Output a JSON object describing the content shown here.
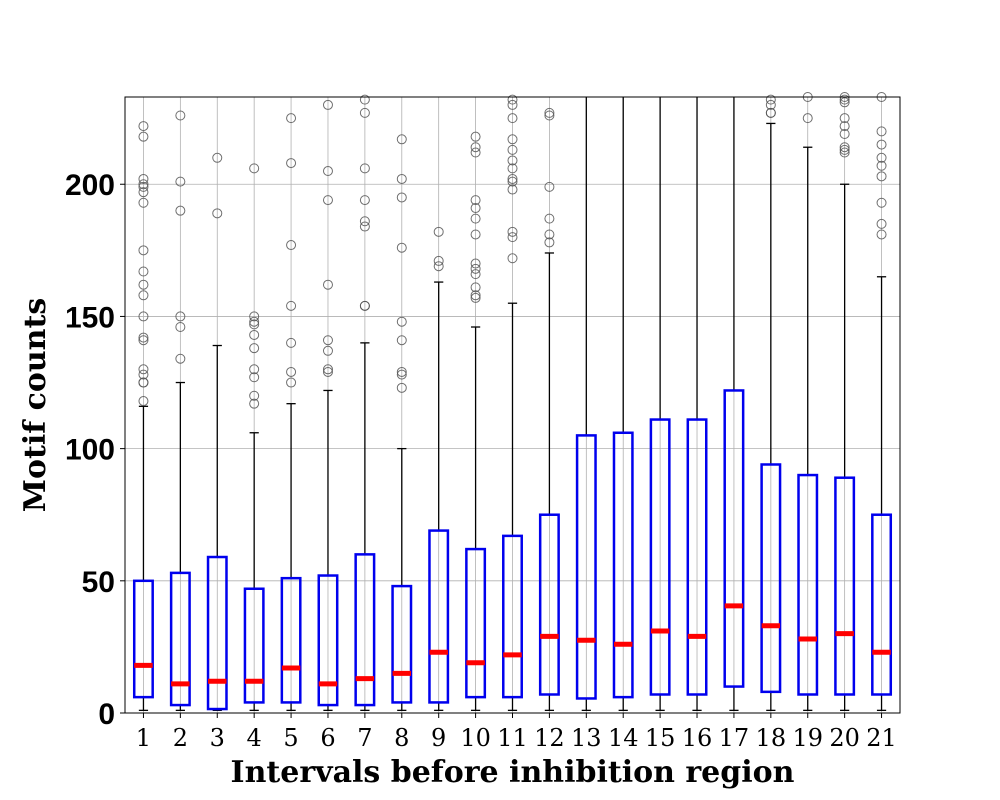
{
  "chart_data": {
    "type": "box",
    "xlabel": "Intervals before inhibition region",
    "ylabel": "Motif counts",
    "ylim": [
      0,
      233
    ],
    "yticks": [
      0,
      50,
      100,
      150,
      200
    ],
    "grid": true,
    "colors": {
      "box": "#0000ee",
      "median": "#ff0000",
      "whisker": "#000000",
      "outlier": "#555555",
      "grid": "#b0b0b0"
    },
    "boxes": [
      {
        "label": "1",
        "whislo": 1,
        "q1": 6,
        "med": 18,
        "q3": 50,
        "whishi": 116,
        "fliers": [
          118,
          125,
          125,
          128,
          130,
          141,
          142,
          150,
          158,
          162,
          167,
          175,
          193,
          197,
          199,
          200,
          202,
          218,
          222
        ]
      },
      {
        "label": "2",
        "whislo": 1,
        "q1": 3,
        "med": 11,
        "q3": 53,
        "whishi": 125,
        "fliers": [
          134,
          146,
          150,
          190,
          201,
          226
        ]
      },
      {
        "label": "3",
        "whislo": 1,
        "q1": 1.5,
        "med": 12,
        "q3": 59,
        "whishi": 139,
        "fliers": [
          189,
          210
        ]
      },
      {
        "label": "4",
        "whislo": 1,
        "q1": 4,
        "med": 12,
        "q3": 47,
        "whishi": 106,
        "fliers": [
          117,
          120,
          127,
          130,
          138,
          143,
          147,
          148,
          150,
          206
        ]
      },
      {
        "label": "5",
        "whislo": 1,
        "q1": 4,
        "med": 17,
        "q3": 51,
        "whishi": 117,
        "fliers": [
          125,
          129,
          140,
          154,
          177,
          208,
          225
        ]
      },
      {
        "label": "6",
        "whislo": 1,
        "q1": 3,
        "med": 11,
        "q3": 52,
        "whishi": 122,
        "fliers": [
          129,
          130,
          137,
          141,
          162,
          194,
          205,
          230
        ]
      },
      {
        "label": "7",
        "whislo": 1,
        "q1": 3,
        "med": 13,
        "q3": 60,
        "whishi": 140,
        "fliers": [
          154,
          154,
          184,
          186,
          194,
          206,
          227,
          232
        ]
      },
      {
        "label": "8",
        "whislo": 1,
        "q1": 4,
        "med": 15,
        "q3": 48,
        "whishi": 100,
        "fliers": [
          123,
          128,
          129,
          141,
          148,
          176,
          195,
          202,
          217
        ]
      },
      {
        "label": "9",
        "whislo": 1,
        "q1": 4,
        "med": 23,
        "q3": 69,
        "whishi": 163,
        "fliers": [
          169,
          171,
          182
        ]
      },
      {
        "label": "10",
        "whislo": 1,
        "q1": 6,
        "med": 19,
        "q3": 62,
        "whishi": 146,
        "fliers": [
          157,
          158,
          161,
          166,
          168,
          170,
          181,
          187,
          191,
          194,
          212,
          214,
          218
        ]
      },
      {
        "label": "11",
        "whislo": 1,
        "q1": 6,
        "med": 22,
        "q3": 67,
        "whishi": 155,
        "fliers": [
          172,
          180,
          182,
          198,
          201,
          202,
          206,
          209,
          213,
          217,
          225,
          230,
          232
        ]
      },
      {
        "label": "12",
        "whislo": 1,
        "q1": 7,
        "med": 29,
        "q3": 75,
        "whishi": 174,
        "fliers": [
          178,
          181,
          187,
          199,
          226,
          227
        ]
      },
      {
        "label": "13",
        "whislo": 1,
        "q1": 5.5,
        "med": 27.5,
        "q3": 105,
        "whishi": 233,
        "fliers": []
      },
      {
        "label": "14",
        "whislo": 1,
        "q1": 6,
        "med": 26,
        "q3": 106,
        "whishi": 233,
        "fliers": []
      },
      {
        "label": "15",
        "whislo": 1,
        "q1": 7,
        "med": 31,
        "q3": 111,
        "whishi": 233,
        "fliers": []
      },
      {
        "label": "16",
        "whislo": 1,
        "q1": 7,
        "med": 29,
        "q3": 111,
        "whishi": 233,
        "fliers": []
      },
      {
        "label": "17",
        "whislo": 1,
        "q1": 10,
        "med": 40.5,
        "q3": 122,
        "whishi": 233,
        "fliers": []
      },
      {
        "label": "18",
        "whislo": 1,
        "q1": 8,
        "med": 33,
        "q3": 94,
        "whishi": 223,
        "fliers": [
          227,
          227,
          230,
          232
        ]
      },
      {
        "label": "19",
        "whislo": 1,
        "q1": 7,
        "med": 28,
        "q3": 90,
        "whishi": 214,
        "fliers": [
          225,
          233
        ]
      },
      {
        "label": "20",
        "whislo": 1,
        "q1": 7,
        "med": 30,
        "q3": 89,
        "whishi": 200,
        "fliers": [
          212,
          213,
          214,
          219,
          222,
          225,
          231,
          232,
          233
        ]
      },
      {
        "label": "21",
        "whislo": 1,
        "q1": 7,
        "med": 23,
        "q3": 75,
        "whishi": 165,
        "fliers": [
          181,
          185,
          193,
          203,
          207,
          210,
          215,
          220,
          233
        ]
      }
    ]
  }
}
